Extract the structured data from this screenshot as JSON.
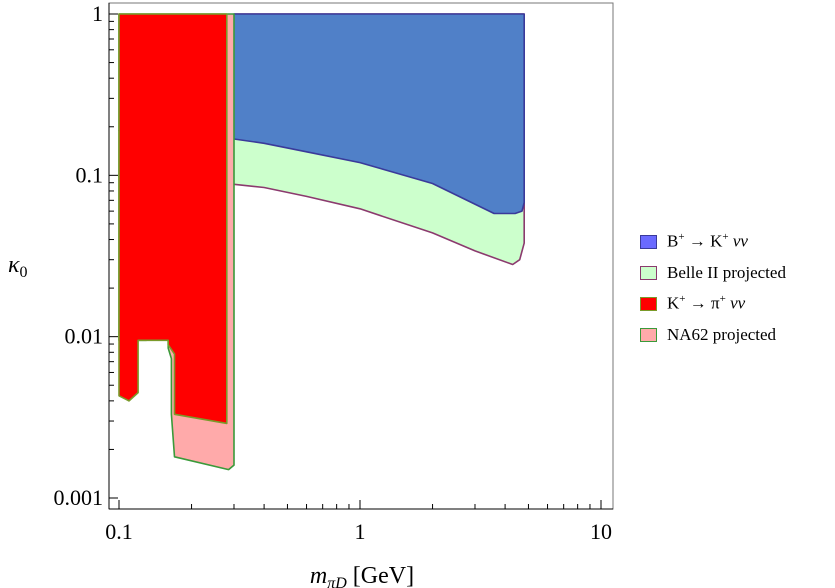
{
  "chart_data": {
    "type": "area",
    "title": "",
    "xlabel": "m_{πD} [GeV]",
    "xlabel_main": "m",
    "xlabel_sub": "πD",
    "xlabel_unit": " [GeV]",
    "ylabel": "κ0",
    "ylabel_main": "κ",
    "ylabel_sub": "0",
    "x_scale": "log",
    "y_scale": "log",
    "xlim": [
      0.1,
      10
    ],
    "ylim": [
      0.001,
      1
    ],
    "x_ticks": [
      0.1,
      1,
      10
    ],
    "x_tick_labels": [
      "0.1",
      "1",
      "10"
    ],
    "y_ticks": [
      0.001,
      0.01,
      0.1,
      1
    ],
    "y_tick_labels": [
      "0.001",
      "0.01",
      "0.1",
      "1"
    ],
    "grid": false,
    "legend_position": "right",
    "series": [
      {
        "name": "Belle II projected",
        "label_parts": [
          "Belle II projected"
        ],
        "fill": "#ccffcc",
        "stroke": "#8b3a6e",
        "boundary": [
          [
            0.3,
            1
          ],
          [
            4.8,
            1
          ],
          [
            4.8,
            0.038
          ],
          [
            4.6,
            0.03
          ],
          [
            4.3,
            0.028
          ],
          [
            3.0,
            0.034
          ],
          [
            2.0,
            0.044
          ],
          [
            1.0,
            0.062
          ],
          [
            0.6,
            0.074
          ],
          [
            0.4,
            0.084
          ],
          [
            0.3,
            0.088
          ],
          [
            0.2,
            0.093
          ],
          [
            0.1,
            0.098
          ]
        ]
      },
      {
        "name": "B⁺ → K⁺ νν",
        "label_parts": [
          "B",
          "+",
          " → K",
          "+",
          " νν"
        ],
        "fill": "#5080c8",
        "stroke": "#3a3a9a",
        "boundary": [
          [
            0.3,
            1
          ],
          [
            4.8,
            1
          ],
          [
            4.8,
            0.068
          ],
          [
            4.7,
            0.06
          ],
          [
            4.4,
            0.058
          ],
          [
            3.6,
            0.058
          ],
          [
            2.0,
            0.089
          ],
          [
            1.0,
            0.12
          ],
          [
            0.6,
            0.14
          ],
          [
            0.4,
            0.158
          ],
          [
            0.3,
            0.168
          ],
          [
            0.2,
            0.178
          ],
          [
            0.1,
            0.19
          ]
        ]
      },
      {
        "name": "NA62 projected",
        "label_parts": [
          "NA62 projected"
        ],
        "fill": "#ffaaaa",
        "stroke": "#3a9a3a",
        "boundary": [
          [
            0.1,
            1
          ],
          [
            0.3,
            1
          ],
          [
            0.3,
            0.0016
          ],
          [
            0.285,
            0.0015
          ],
          [
            0.17,
            0.0018
          ],
          [
            0.165,
            0.0033
          ],
          [
            0.165,
            0.0073
          ],
          [
            0.16,
            0.0085
          ],
          [
            0.16,
            0.0182
          ],
          [
            0.13,
            0.0182
          ],
          [
            0.13,
            0.0095
          ],
          [
            0.1,
            0.0095
          ]
        ]
      },
      {
        "name": "K⁺ → π⁺ νν",
        "label_parts": [
          "K",
          "+",
          " → π",
          "+",
          " νν"
        ],
        "fill": "#ff0000",
        "stroke": "#7a9a2a",
        "boundary": [
          [
            0.1,
            1
          ],
          [
            0.28,
            1
          ],
          [
            0.28,
            0.0029
          ],
          [
            0.17,
            0.0033
          ],
          [
            0.17,
            0.0078
          ],
          [
            0.16,
            0.0089
          ],
          [
            0.16,
            0.0095
          ],
          [
            0.12,
            0.0095
          ],
          [
            0.12,
            0.0045
          ],
          [
            0.11,
            0.004
          ],
          [
            0.1,
            0.0043
          ]
        ]
      }
    ],
    "legend_order": [
      1,
      0,
      3,
      2
    ]
  }
}
